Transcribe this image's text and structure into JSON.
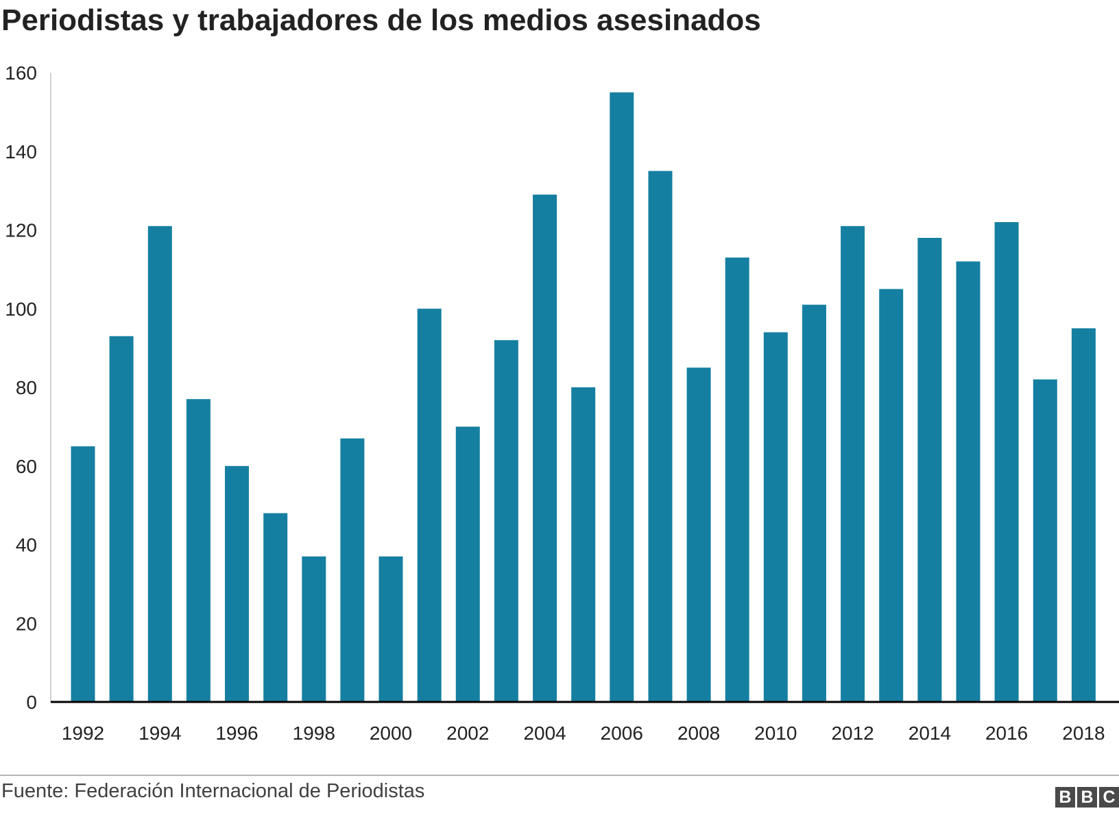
{
  "title": "Periodistas y trabajadores de los medios asesinados",
  "source": "Fuente: Federación Internacional de Periodistas",
  "logo": {
    "letters": [
      "B",
      "B",
      "C"
    ],
    "icon": "bbc-logo"
  },
  "colors": {
    "bar": "#157fa1",
    "axis": "#000000",
    "text": "#222222"
  },
  "chart_data": {
    "type": "bar",
    "title": "Periodistas y trabajadores de los medios asesinados",
    "xlabel": "",
    "ylabel": "",
    "categories": [
      "1992",
      "1993",
      "1994",
      "1995",
      "1996",
      "1997",
      "1998",
      "1999",
      "2000",
      "2001",
      "2002",
      "2003",
      "2004",
      "2005",
      "2006",
      "2007",
      "2008",
      "2009",
      "2010",
      "2011",
      "2012",
      "2013",
      "2014",
      "2015",
      "2016",
      "2017",
      "2018"
    ],
    "x_tick_labels": [
      "1992",
      "1994",
      "1996",
      "1998",
      "2000",
      "2002",
      "2004",
      "2006",
      "2008",
      "2010",
      "2012",
      "2014",
      "2016",
      "2018"
    ],
    "values": [
      65,
      93,
      121,
      77,
      60,
      48,
      37,
      67,
      37,
      100,
      70,
      92,
      129,
      80,
      155,
      135,
      85,
      113,
      94,
      101,
      121,
      105,
      118,
      112,
      122,
      82,
      95
    ],
    "ylim": [
      0,
      160
    ],
    "y_ticks": [
      0,
      20,
      40,
      60,
      80,
      100,
      120,
      140,
      160
    ],
    "grid": false,
    "legend": "none"
  }
}
